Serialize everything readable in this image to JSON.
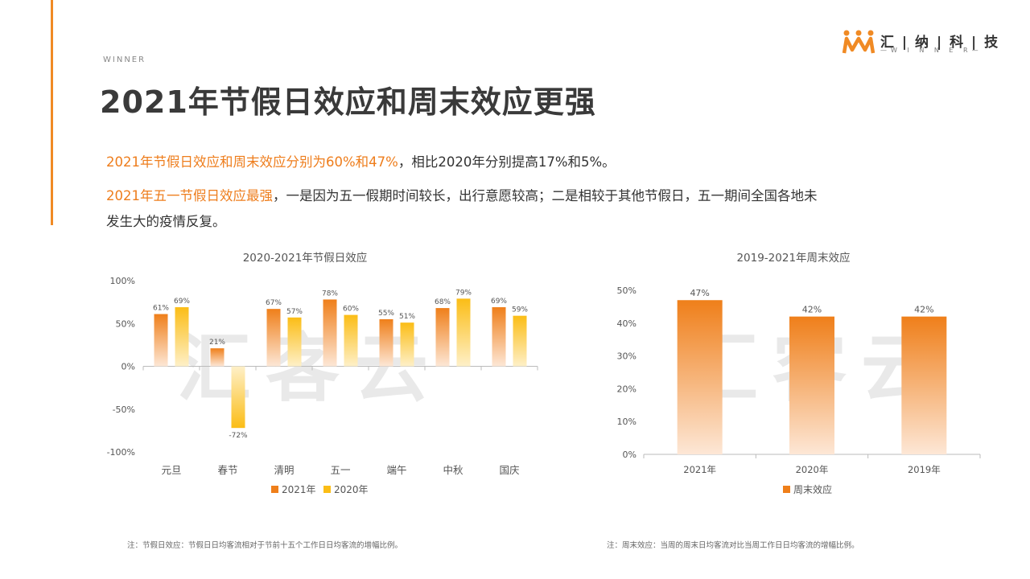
{
  "header": {
    "brand_small": "WINNER",
    "title": "2021年节假日效应和周末效应更强",
    "logo": {
      "name": "汇 | 纳 | 科 | 技",
      "sub": "—W I N N E R—"
    }
  },
  "body": {
    "p1_highlight": "2021年节假日效应和周末效应分别为60%和47%",
    "p1_rest": "，相比2020年分别提高17%和5%。",
    "p2_highlight": "2021年五一节假日效应最强",
    "p2_rest": "，一是因为五一假期时间较长，出行意愿较高；二是相较于其他节假日，五一期间全国各地未",
    "p3": "发生大的疫情反复。"
  },
  "watermark": "汇客云",
  "colors": {
    "accent": "#ee7d1c",
    "orange": "#f08a24",
    "yellow": "#fbbf1d"
  },
  "chart_data": [
    {
      "type": "bar",
      "title": "2020-2021年节假日效应",
      "categories": [
        "元旦",
        "春节",
        "清明",
        "五一",
        "端午",
        "中秋",
        "国庆"
      ],
      "series": [
        {
          "name": "2021年",
          "values": [
            61,
            21,
            67,
            78,
            55,
            68,
            69
          ],
          "labels": [
            "61%",
            "21%",
            "67%",
            "78%",
            "55%",
            "68%",
            "69%"
          ]
        },
        {
          "name": "2020年",
          "values": [
            69,
            -72,
            57,
            60,
            51,
            79,
            59
          ],
          "labels": [
            "69%",
            "-72%",
            "57%",
            "60%",
            "51%",
            "79%",
            "59%"
          ]
        }
      ],
      "ylim": [
        -100,
        100
      ],
      "yticks": [
        100,
        50,
        0,
        -50,
        -100
      ],
      "ytick_labels": [
        "100%",
        "50%",
        "0%",
        "-50%",
        "-100%"
      ],
      "legend_position": "bottom",
      "note": "注：节假日效应：节假日日均客流相对于节前十五个工作日日均客流的增幅比例。"
    },
    {
      "type": "bar",
      "title": "2019-2021年周末效应",
      "categories": [
        "2021年",
        "2020年",
        "2019年"
      ],
      "series": [
        {
          "name": "周末效应",
          "values": [
            47,
            42,
            42
          ],
          "labels": [
            "47%",
            "42%",
            "42%"
          ]
        }
      ],
      "ylim": [
        0,
        50
      ],
      "yticks": [
        50,
        40,
        30,
        20,
        10,
        0
      ],
      "ytick_labels": [
        "50%",
        "40%",
        "30%",
        "20%",
        "10%",
        "0%"
      ],
      "legend_position": "bottom",
      "note": "注：周末效应：当周的周末日均客流对比当周工作日日均客流的增幅比例。"
    }
  ]
}
